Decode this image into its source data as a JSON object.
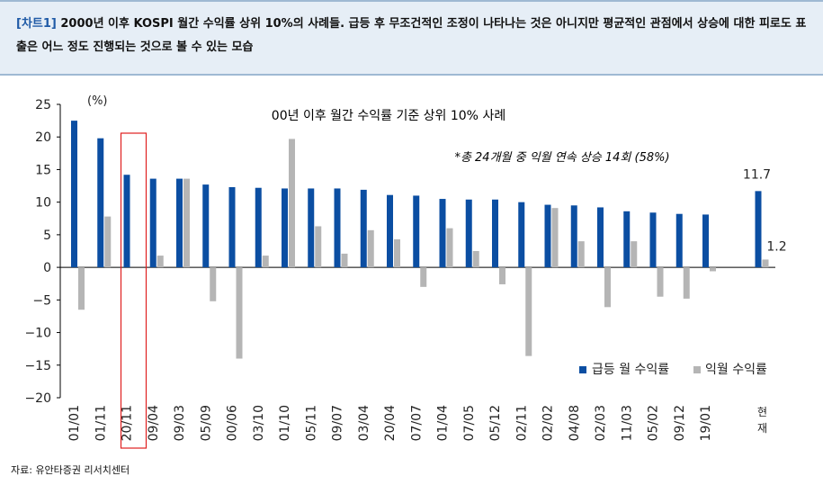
{
  "header": {
    "tag": "[차트1]",
    "title": "2000년 이후 KOSPI 월간 수익률 상위 10%의 사례들. 급등 후 무조건적인 조정이 나타나는 것은 아니지만 평균적인 관점에서 상승에 대한 피로도 표출은 어느 정도 진행되는 것으로 볼 수 있는 모습"
  },
  "source": "자료: 유안타증권 리서치센터",
  "colors": {
    "primary": "#0b4ea2",
    "secondary": "#b5b5b5",
    "highlight": "#e02020"
  },
  "chart_data": {
    "type": "bar",
    "title": "00년 이후 월간 수익률 기준 상위 10% 사례",
    "annotation": "*총 24개월 중 익월 연속 상승 14회 (58%)",
    "unit": "(%)",
    "ylim": [
      -20,
      25
    ],
    "yticks": [
      "25",
      "20",
      "15",
      "10",
      "5",
      "0",
      "−5",
      "−10",
      "−15",
      "−20"
    ],
    "categories": [
      "01/01",
      "01/11",
      "20/11",
      "09/04",
      "09/03",
      "05/09",
      "00/06",
      "03/10",
      "01/10",
      "05/11",
      "09/07",
      "03/04",
      "20/04",
      "07/07",
      "01/04",
      "07/05",
      "05/12",
      "02/11",
      "02/02",
      "04/08",
      "02/03",
      "11/03",
      "05/02",
      "09/12",
      "19/01",
      "",
      "현재"
    ],
    "series": [
      {
        "name": "급등 월 수익률",
        "values": [
          22.5,
          19.8,
          14.2,
          13.6,
          13.6,
          12.7,
          12.3,
          12.2,
          12.1,
          12.1,
          12.1,
          11.9,
          11.1,
          11.0,
          10.5,
          10.4,
          10.4,
          10.0,
          9.6,
          9.5,
          9.2,
          8.6,
          8.4,
          8.2,
          8.1,
          null,
          11.7
        ]
      },
      {
        "name": "익월 수익률",
        "values": [
          -6.5,
          7.8,
          null,
          1.8,
          13.6,
          -5.2,
          -14.0,
          1.8,
          19.7,
          6.3,
          2.1,
          5.7,
          4.3,
          -3.0,
          6.0,
          2.5,
          -2.6,
          -13.6,
          9.1,
          4.0,
          -6.1,
          4.0,
          -4.5,
          -4.8,
          -0.6,
          null,
          1.2
        ]
      }
    ],
    "data_labels": {
      "primary_last": "11.7",
      "secondary_last": "1.2"
    },
    "highlight_category": "20/11",
    "grid": false,
    "legend_position": "bottom-right"
  }
}
